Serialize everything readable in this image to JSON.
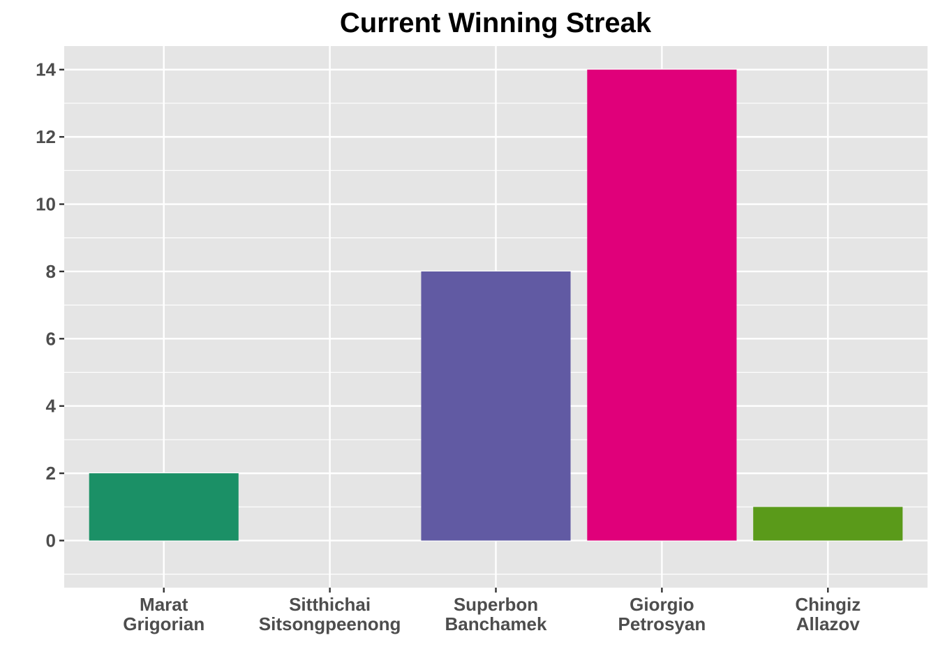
{
  "chart_data": {
    "type": "bar",
    "title": "Current Winning Streak",
    "xlabel": "",
    "ylabel": "",
    "categories": [
      [
        "Marat",
        "Grigorian"
      ],
      [
        "Sitthichai",
        "Sitsongpeenong"
      ],
      [
        "Superbon",
        "Banchamek"
      ],
      [
        "Giorgio",
        "Petrosyan"
      ],
      [
        "Chingiz",
        "Allazov"
      ]
    ],
    "values": [
      2,
      0,
      8,
      14,
      1
    ],
    "colors": [
      "#1b9066",
      "#d95f02",
      "#615aa3",
      "#e0007a",
      "#5a9a1a"
    ],
    "ylim": [
      -1.4,
      14.7
    ],
    "yticks": [
      0,
      2,
      4,
      6,
      8,
      10,
      12,
      14
    ],
    "grid": true,
    "legend": "none",
    "panel_background": "#e5e5e5",
    "grid_color": "#ffffff"
  }
}
